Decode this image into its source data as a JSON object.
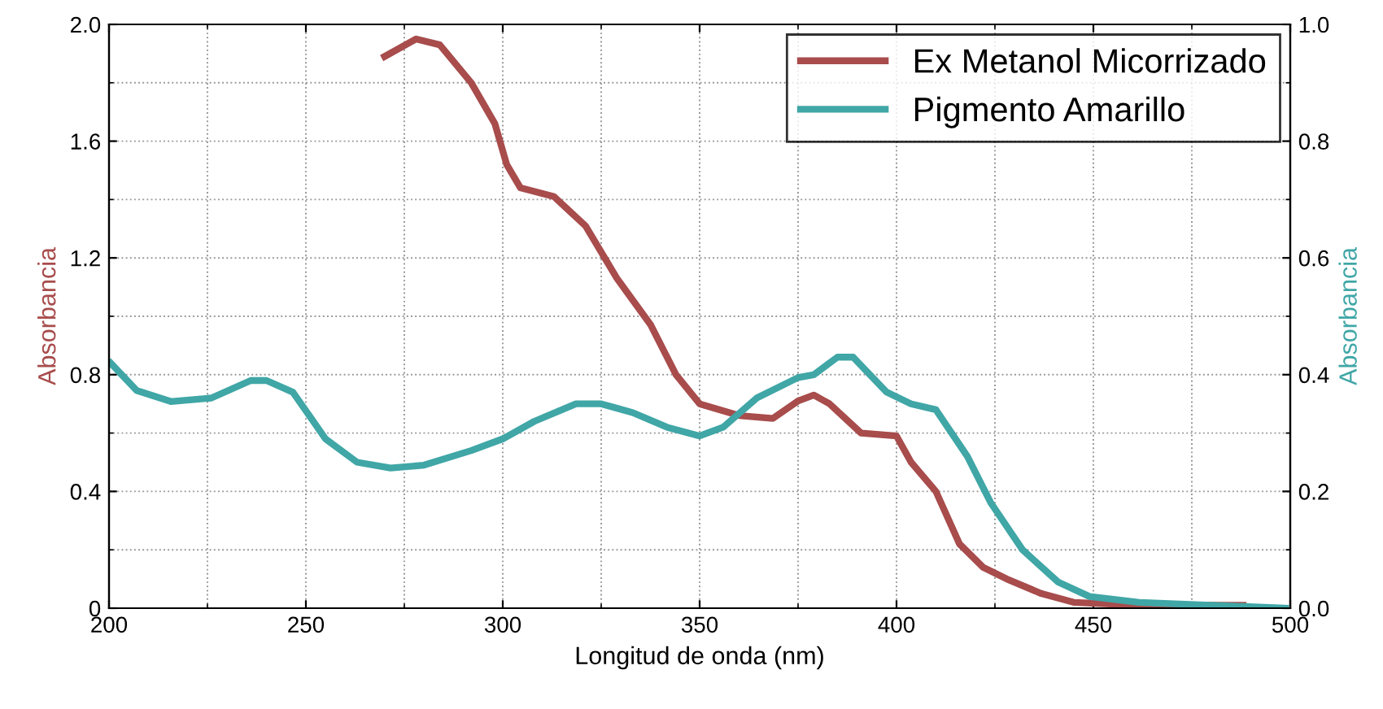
{
  "chart_data": {
    "type": "line",
    "xlabel": "Longitud de onda (nm)",
    "ylabel": "Absorbancia",
    "y2label": "Absorbancia",
    "xlim": [
      200,
      500
    ],
    "xticks": [
      200,
      250,
      300,
      350,
      400,
      450,
      500
    ],
    "ylim": [
      0,
      2.0
    ],
    "yticks": [
      0,
      {
        "value": 0.4,
        "label": "0.4"
      },
      {
        "value": 0.8,
        "label": "0.8"
      },
      {
        "value": 1.2,
        "label": "1.2"
      },
      {
        "value": 1.6,
        "label": "1.6"
      },
      {
        "value": 2.0,
        "label": "2.0"
      }
    ],
    "y2lim": [
      0,
      1.0
    ],
    "y2ticks": [
      {
        "value": 0,
        "label": "0.0"
      },
      0.2,
      0.4,
      0.6,
      0.8,
      {
        "value": 1.0,
        "label": "1.0"
      }
    ],
    "grid": true,
    "legend": "top right",
    "line_style": "solid",
    "series": [
      {
        "name": "Ex Metanol Micorrizado",
        "color": "#a84c4c",
        "x": [
          270,
          278,
          284,
          292,
          298,
          301,
          304.5,
          313,
          321,
          329,
          337.6,
          344,
          350,
          360,
          368.6,
          375,
          379,
          383,
          391,
          400,
          403.7,
          410,
          416,
          422,
          428,
          436.8,
          445,
          461.6,
          488
        ],
        "values": [
          1.89,
          1.95,
          1.93,
          1.8,
          1.66,
          1.52,
          1.44,
          1.41,
          1.31,
          1.13,
          0.97,
          0.8,
          0.7,
          0.66,
          0.65,
          0.71,
          0.73,
          0.7,
          0.6,
          0.59,
          0.5,
          0.4,
          0.22,
          0.14,
          0.1,
          0.05,
          0.02,
          0.01,
          0.01
        ]
      },
      {
        "name": "Pigmento Amarillo",
        "color": "#40a6a6",
        "axis": "y2",
        "x": [
          200.4,
          207,
          215.7,
          226,
          236,
          240,
          246.7,
          255,
          263,
          271.5,
          280,
          292,
          300,
          308,
          318.6,
          325,
          333,
          341.7,
          350,
          356,
          364.5,
          375,
          379,
          385,
          389,
          397.5,
          403.7,
          410,
          418,
          424,
          432,
          441,
          449,
          461.6,
          498.8
        ],
        "values": [
          0.42,
          0.373,
          0.354,
          0.36,
          0.39,
          0.39,
          0.37,
          0.29,
          0.25,
          0.24,
          0.245,
          0.27,
          0.29,
          0.32,
          0.35,
          0.35,
          0.335,
          0.31,
          0.295,
          0.31,
          0.36,
          0.395,
          0.4,
          0.43,
          0.43,
          0.37,
          0.35,
          0.34,
          0.26,
          0.18,
          0.1,
          0.045,
          0.02,
          0.01,
          0.0
        ]
      }
    ]
  }
}
